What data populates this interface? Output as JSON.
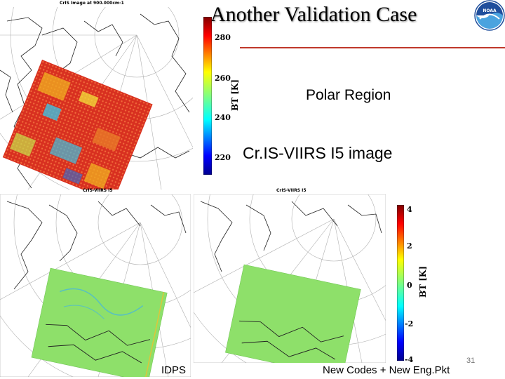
{
  "slide": {
    "title": "Another Validation Case",
    "polar_label": "Polar Region",
    "image_label": "Cr.IS-VIIRS I5 image",
    "bottom_left_label": "IDPS",
    "bottom_mid_label": "New Codes + New Eng.Pkt",
    "slide_number": "31"
  },
  "top_panel": {
    "title": "CrIS Image at 900.000cm-1",
    "colorbar": {
      "label": "BT [K]",
      "ticks": [
        "280",
        "260",
        "240",
        "220"
      ]
    }
  },
  "bottom_left_panel": {
    "title": "CrIS-VIIRS I5"
  },
  "bottom_right_panel": {
    "title": "CrIS-VIIRS I5",
    "colorbar": {
      "label": "BT [K]",
      "ticks": [
        "4",
        "2",
        "0",
        "-2",
        "-4"
      ]
    }
  },
  "logo": {
    "icon": "noaa-logo",
    "text": "NOAA"
  },
  "colors": {
    "title_rule": "#c0392b"
  }
}
